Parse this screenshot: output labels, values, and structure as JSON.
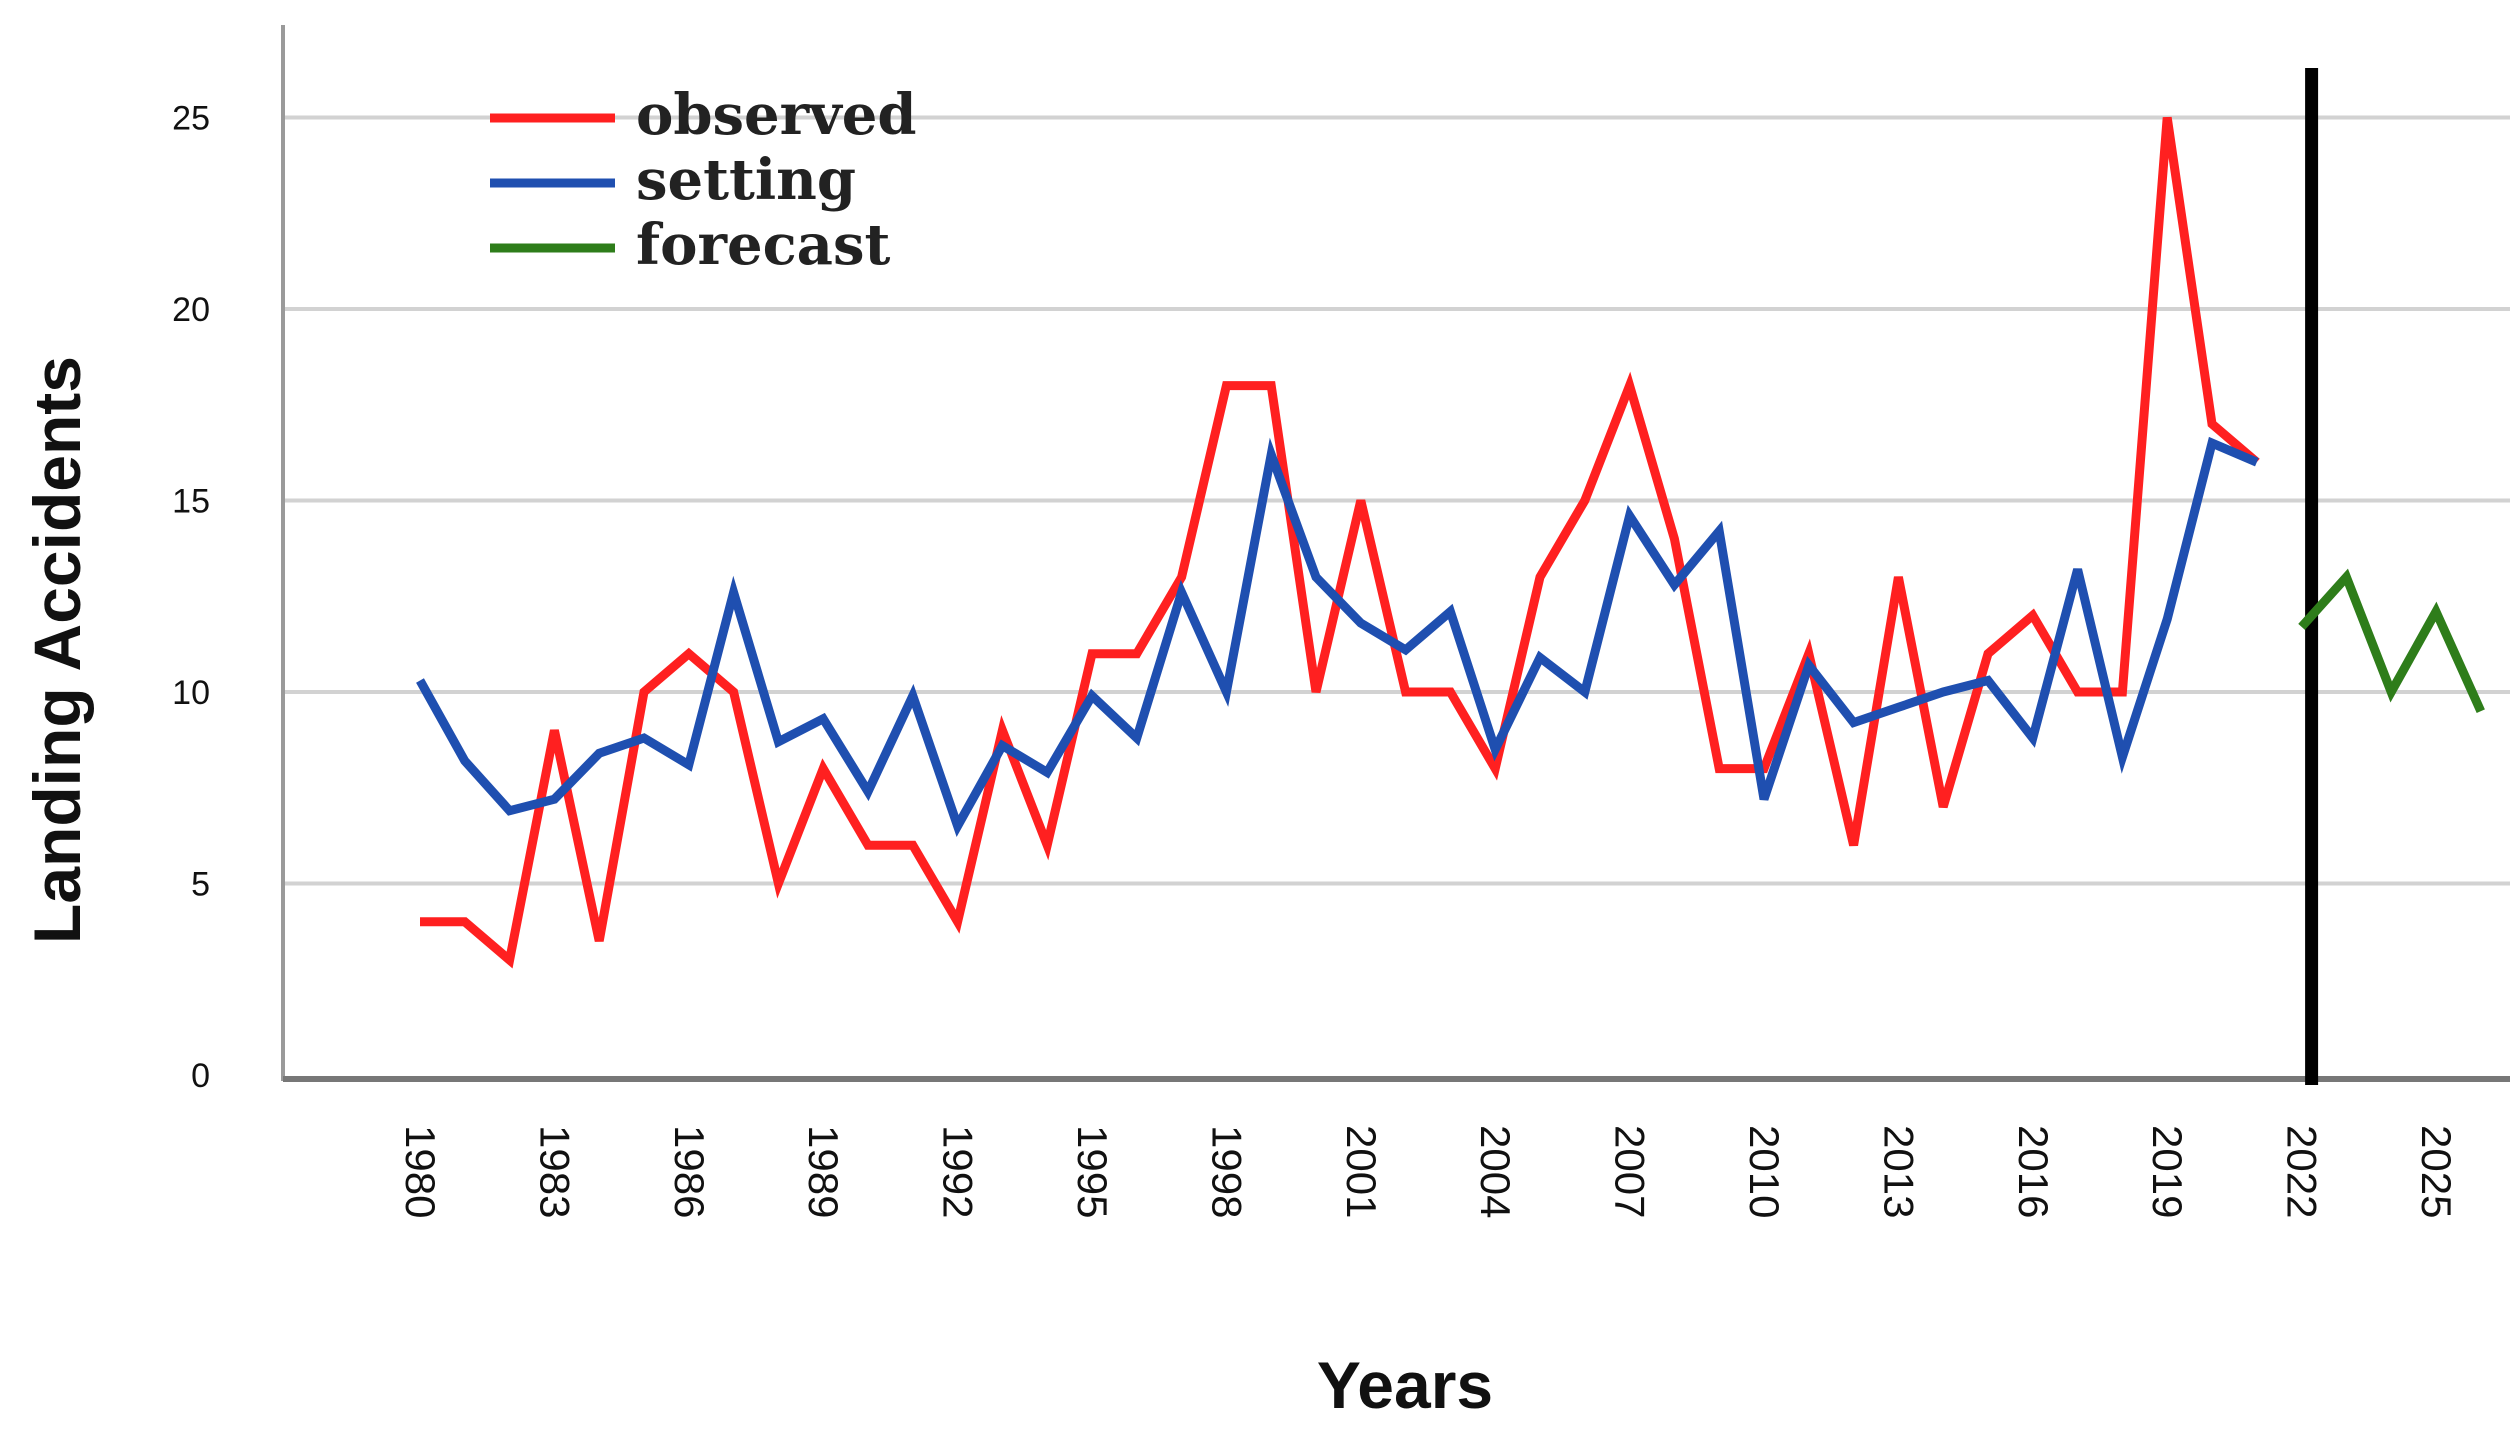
{
  "chart_data": {
    "type": "line",
    "title": "",
    "xlabel": "Years",
    "ylabel": "Landing Accidents",
    "xlim": [
      1978,
      2028
    ],
    "ylim": [
      0,
      27
    ],
    "yticks": [
      0,
      5,
      10,
      15,
      20,
      25
    ],
    "xticks": [
      1980,
      1983,
      1986,
      1989,
      1992,
      1995,
      1998,
      2001,
      2004,
      2007,
      2010,
      2013,
      2016,
      2019,
      2022,
      2025
    ],
    "grid": "horizontal",
    "legend_position": "top-left",
    "divider_year": 2022,
    "series": [
      {
        "name": "observed",
        "color": "#ff2020",
        "x": [
          1980,
          1981,
          1982,
          1983,
          1984,
          1985,
          1986,
          1987,
          1988,
          1989,
          1990,
          1991,
          1992,
          1993,
          1994,
          1995,
          1996,
          1997,
          1998,
          1999,
          2000,
          2001,
          2002,
          2003,
          2004,
          2005,
          2006,
          2007,
          2008,
          2009,
          2010,
          2011,
          2012,
          2013,
          2014,
          2015,
          2016,
          2017,
          2018,
          2019,
          2020,
          2021
        ],
        "values": [
          4,
          4,
          3,
          9,
          3.5,
          10,
          11,
          10,
          5,
          8,
          6,
          6,
          4,
          9,
          6,
          11,
          11,
          13,
          18,
          18,
          10,
          15,
          10,
          10,
          8,
          13,
          15,
          18,
          14,
          8,
          8,
          11,
          6,
          13,
          7,
          11,
          12,
          10,
          10,
          25,
          17,
          16
        ]
      },
      {
        "name": "setting",
        "color": "#1f4fb0",
        "x": [
          1980,
          1981,
          1982,
          1983,
          1984,
          1985,
          1986,
          1987,
          1988,
          1989,
          1990,
          1991,
          1992,
          1993,
          1994,
          1995,
          1996,
          1997,
          1998,
          1999,
          2000,
          2001,
          2002,
          2003,
          2004,
          2005,
          2006,
          2007,
          2008,
          2009,
          2010,
          2011,
          2012,
          2013,
          2014,
          2015,
          2016,
          2017,
          2018,
          2019,
          2020,
          2021
        ],
        "values": [
          10.3,
          8.2,
          6.9,
          7.2,
          8.4,
          8.8,
          8.1,
          12.6,
          8.7,
          9.3,
          7.4,
          9.9,
          6.5,
          8.6,
          7.9,
          9.9,
          8.8,
          12.6,
          10,
          16.2,
          13,
          11.8,
          11.1,
          12.1,
          8.5,
          10.9,
          10,
          14.6,
          12.8,
          14.2,
          7.2,
          10.7,
          9.2,
          9.6,
          10,
          10.3,
          8.8,
          13.2,
          8.3,
          11.9,
          16.5,
          16
        ]
      },
      {
        "name": "forecast",
        "color": "#2e7d1a",
        "x": [
          2022,
          2023,
          2024,
          2025,
          2026
        ],
        "values": [
          11.7,
          13,
          10,
          12.1,
          9.5
        ]
      }
    ]
  }
}
